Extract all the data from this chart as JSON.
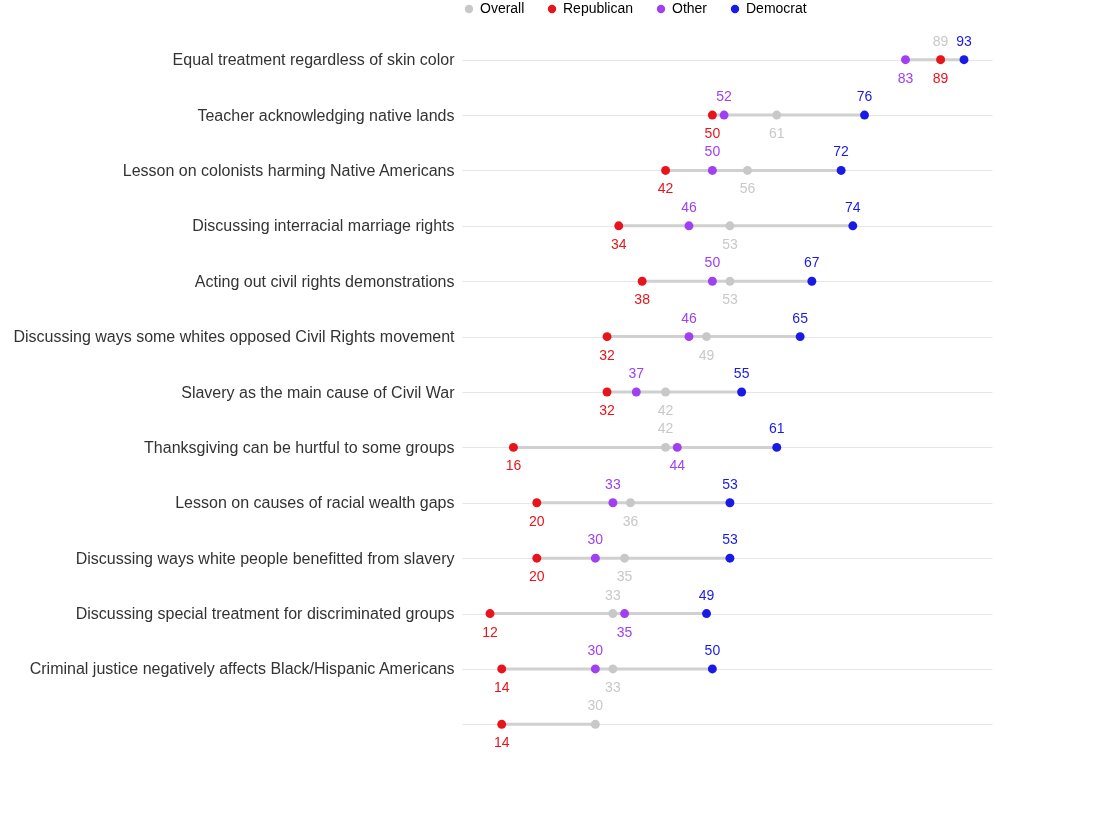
{
  "chart_data": {
    "type": "scatter",
    "categories": [
      "Equal treatment regardless of skin color",
      "Teacher acknowledging native lands",
      "Lesson on colonists harming Native Americans",
      "Discussing interracial marriage rights",
      "Acting out civil rights demonstrations",
      "Discussing ways some  whites opposed Civil Rights movement",
      "Slavery as the main cause of Civil War",
      "Thanksgiving can be hurtful to some groups",
      "Lesson on causes of racial wealth gaps",
      "Discussing ways  white people benefitted from slavery",
      "Discussing special treatment for discriminated groups",
      "Criminal justice negatively affects Black/Hispanic Americans",
      null
    ],
    "orientation": "horizontal",
    "data_labels": true,
    "legend": "top",
    "grid": "y",
    "marker": "circle",
    "tick_labels": "y",
    "series": [
      {
        "name": "Overall",
        "color": "#c8c8c8",
        "values": [
          89,
          61,
          56,
          53,
          53,
          49,
          42,
          42,
          36,
          35,
          33,
          33,
          30
        ]
      },
      {
        "name": "Republican",
        "color": "#e8141c",
        "values": [
          89,
          50,
          42,
          34,
          38,
          32,
          32,
          16,
          20,
          20,
          12,
          14,
          14
        ]
      },
      {
        "name": "Other",
        "color": "#a040f0",
        "values": [
          83,
          52,
          50,
          46,
          50,
          46,
          37,
          44,
          33,
          30,
          35,
          30,
          null
        ]
      },
      {
        "name": "Democrat",
        "color": "#1a1ae6",
        "values": [
          93,
          76,
          72,
          74,
          67,
          65,
          55,
          61,
          53,
          53,
          49,
          50,
          null
        ]
      }
    ]
  }
}
